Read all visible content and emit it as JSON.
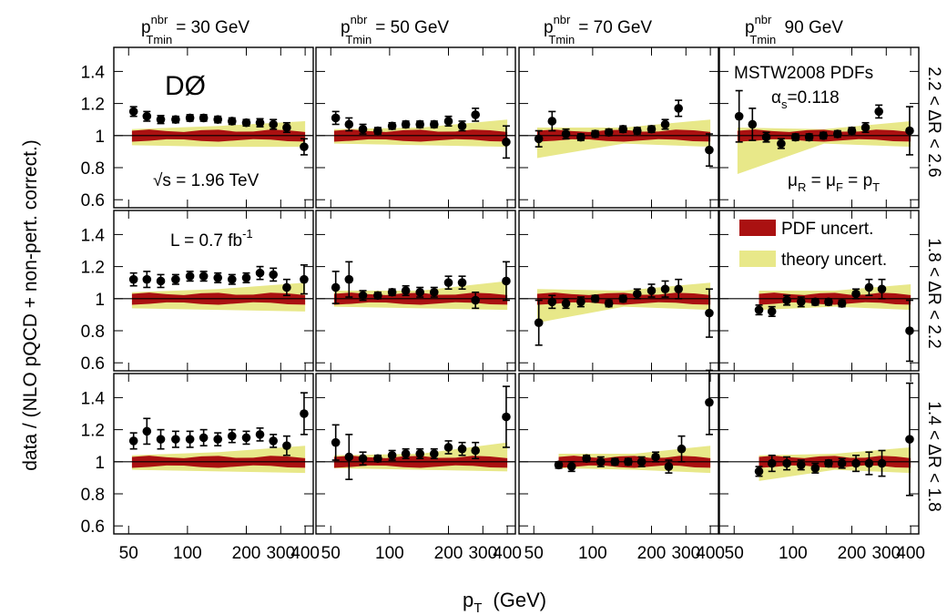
{
  "chart_data": {
    "type": "scatter",
    "layout": "3x4 grid of panels",
    "xlabel_main": "p",
    "xlabel_sub": "T",
    "xlabel_unit": "(GeV)",
    "ylabel": "data / (NLO pQCD + non-pert. correct.)",
    "x_scale": "log",
    "xlim": [
      42,
      440
    ],
    "ylim": [
      0.55,
      1.55
    ],
    "x_ticks": [
      50,
      100,
      200,
      300,
      400
    ],
    "x_tick_labels": [
      "50",
      "100",
      "200",
      "300",
      "400"
    ],
    "y_ticks": [
      0.6,
      0.8,
      1,
      1.2,
      1.4
    ],
    "y_tick_labels": [
      "0.6",
      "0.8",
      "1",
      "1.2",
      "1.4"
    ],
    "column_titles": [
      {
        "main": "p",
        "sup": "nbr",
        "sub": "Tmin",
        "rest": "= 30 GeV"
      },
      {
        "main": "p",
        "sup": "nbr",
        "sub": "Tmin",
        "rest": "= 50 GeV"
      },
      {
        "main": "p",
        "sup": "nbr",
        "sub": "Tmin",
        "rest": "= 70 GeV"
      },
      {
        "main": "p",
        "sup": "nbr",
        "sub": "Tmin",
        "rest": " 90 GeV"
      }
    ],
    "row_labels": [
      "2.2 < ΔR < 2.6",
      "1.8 < ΔR < 2.2",
      "1.4 < ΔR < 1.8"
    ],
    "annotations": {
      "experiment": "DØ",
      "sqrt_s": "√s = 1.96 TeV",
      "lumi_main": "L = 0.7 fb",
      "lumi_sup": "-1",
      "pdf_set": "MSTW2008 PDFs",
      "alpha_s_main": "α",
      "alpha_s_sub": "s",
      "alpha_s_val": "=0.118",
      "scale_mu": "μ",
      "scale_R": "R",
      "scale_F": "F",
      "scale_eq": " = ",
      "scale_pT": "p",
      "scale_T": "T"
    },
    "legend": [
      {
        "label": "PDF uncert.",
        "color": "#aa1111"
      },
      {
        "label": "theory uncert.",
        "color": "#e8e889"
      }
    ],
    "colors": {
      "pdf": "#aa1111",
      "theory": "#e8e889",
      "points": "#000000"
    },
    "panels": [
      {
        "row": 0,
        "col": 0,
        "band_xmin": 52,
        "theory_lo": [
          0.94,
          0.93,
          0.93
        ],
        "theory_hi": [
          1.04,
          1.06,
          1.09
        ],
        "points": [
          [
            53,
            1.15,
            0.03
          ],
          [
            62,
            1.12,
            0.03
          ],
          [
            73,
            1.1,
            0.025
          ],
          [
            87,
            1.1,
            0.02
          ],
          [
            103,
            1.11,
            0.02
          ],
          [
            121,
            1.11,
            0.02
          ],
          [
            143,
            1.1,
            0.02
          ],
          [
            169,
            1.09,
            0.02
          ],
          [
            200,
            1.08,
            0.02
          ],
          [
            235,
            1.08,
            0.025
          ],
          [
            275,
            1.07,
            0.03
          ],
          [
            322,
            1.05,
            0.03
          ],
          [
            395,
            0.93,
            0.05
          ]
        ]
      },
      {
        "row": 0,
        "col": 1,
        "band_xmin": 52,
        "theory_lo": [
          0.95,
          0.94,
          0.93
        ],
        "theory_hi": [
          1.04,
          1.05,
          1.1
        ],
        "points": [
          [
            53,
            1.11,
            0.04
          ],
          [
            62,
            1.07,
            0.04
          ],
          [
            73,
            1.04,
            0.03
          ],
          [
            87,
            1.03,
            0.02
          ],
          [
            103,
            1.06,
            0.02
          ],
          [
            121,
            1.07,
            0.02
          ],
          [
            143,
            1.07,
            0.02
          ],
          [
            169,
            1.07,
            0.02
          ],
          [
            200,
            1.09,
            0.03
          ],
          [
            235,
            1.06,
            0.03
          ],
          [
            275,
            1.13,
            0.04
          ],
          [
            395,
            0.96,
            0.1
          ]
        ]
      },
      {
        "row": 0,
        "col": 2,
        "band_xmin": 52,
        "theory_lo": [
          0.86,
          0.95,
          0.93
        ],
        "theory_hi": [
          1.05,
          1.05,
          1.1
        ],
        "points": [
          [
            53,
            0.98,
            0.05
          ],
          [
            62,
            1.09,
            0.06
          ],
          [
            73,
            1.01,
            0.03
          ],
          [
            87,
            0.99,
            0.02
          ],
          [
            103,
            1.01,
            0.02
          ],
          [
            121,
            1.02,
            0.02
          ],
          [
            143,
            1.04,
            0.02
          ],
          [
            169,
            1.03,
            0.02
          ],
          [
            200,
            1.04,
            0.02
          ],
          [
            235,
            1.07,
            0.03
          ],
          [
            275,
            1.17,
            0.05
          ],
          [
            395,
            0.91,
            0.1
          ]
        ]
      },
      {
        "row": 0,
        "col": 3,
        "band_xmin": 52,
        "theory_lo": [
          0.76,
          0.95,
          0.93
        ],
        "theory_hi": [
          1.05,
          1.04,
          1.09
        ],
        "points": [
          [
            53,
            1.12,
            0.16
          ],
          [
            62,
            1.07,
            0.1
          ],
          [
            73,
            0.99,
            0.03
          ],
          [
            87,
            0.95,
            0.03
          ],
          [
            103,
            0.99,
            0.02
          ],
          [
            121,
            0.99,
            0.02
          ],
          [
            143,
            1.0,
            0.02
          ],
          [
            169,
            1.01,
            0.02
          ],
          [
            200,
            1.03,
            0.02
          ],
          [
            235,
            1.05,
            0.03
          ],
          [
            275,
            1.15,
            0.04
          ],
          [
            395,
            1.03,
            0.15
          ]
        ]
      },
      {
        "row": 1,
        "col": 0,
        "band_xmin": 52,
        "theory_lo": [
          0.94,
          0.93,
          0.92
        ],
        "theory_hi": [
          1.04,
          1.06,
          1.1
        ],
        "points": [
          [
            53,
            1.12,
            0.04
          ],
          [
            62,
            1.12,
            0.05
          ],
          [
            73,
            1.11,
            0.04
          ],
          [
            87,
            1.12,
            0.03
          ],
          [
            103,
            1.14,
            0.03
          ],
          [
            121,
            1.14,
            0.03
          ],
          [
            143,
            1.13,
            0.03
          ],
          [
            169,
            1.12,
            0.03
          ],
          [
            200,
            1.13,
            0.03
          ],
          [
            235,
            1.16,
            0.04
          ],
          [
            275,
            1.15,
            0.04
          ],
          [
            322,
            1.07,
            0.05
          ],
          [
            395,
            1.12,
            0.09
          ]
        ]
      },
      {
        "row": 1,
        "col": 1,
        "band_xmin": 52,
        "theory_lo": [
          0.95,
          0.94,
          0.93
        ],
        "theory_hi": [
          1.05,
          1.05,
          1.11
        ],
        "points": [
          [
            53,
            1.07,
            0.1
          ],
          [
            62,
            1.12,
            0.11
          ],
          [
            73,
            1.02,
            0.03
          ],
          [
            87,
            1.02,
            0.02
          ],
          [
            103,
            1.04,
            0.02
          ],
          [
            121,
            1.05,
            0.03
          ],
          [
            143,
            1.04,
            0.03
          ],
          [
            169,
            1.04,
            0.03
          ],
          [
            200,
            1.1,
            0.04
          ],
          [
            235,
            1.1,
            0.04
          ],
          [
            275,
            0.99,
            0.05
          ],
          [
            395,
            1.11,
            0.12
          ]
        ]
      },
      {
        "row": 1,
        "col": 2,
        "band_xmin": 52,
        "theory_lo": [
          0.85,
          0.95,
          0.93
        ],
        "theory_hi": [
          1.06,
          1.05,
          1.1
        ],
        "points": [
          [
            53,
            0.85,
            0.14
          ],
          [
            62,
            0.98,
            0.04
          ],
          [
            73,
            0.97,
            0.03
          ],
          [
            87,
            0.98,
            0.03
          ],
          [
            103,
            1.0,
            0.02
          ],
          [
            121,
            0.97,
            0.02
          ],
          [
            143,
            1.0,
            0.02
          ],
          [
            169,
            1.03,
            0.03
          ],
          [
            200,
            1.05,
            0.04
          ],
          [
            235,
            1.06,
            0.05
          ],
          [
            275,
            1.06,
            0.06
          ],
          [
            395,
            0.91,
            0.15
          ]
        ]
      },
      {
        "row": 1,
        "col": 3,
        "band_xmin": 67,
        "theory_lo": [
          0.93,
          0.95,
          0.93
        ],
        "theory_hi": [
          1.05,
          1.05,
          1.09
        ],
        "points": [
          [
            67,
            0.93,
            0.03
          ],
          [
            78,
            0.92,
            0.03
          ],
          [
            93,
            0.99,
            0.03
          ],
          [
            110,
            0.98,
            0.03
          ],
          [
            130,
            0.98,
            0.02
          ],
          [
            152,
            0.98,
            0.02
          ],
          [
            178,
            0.97,
            0.02
          ],
          [
            210,
            1.03,
            0.03
          ],
          [
            245,
            1.07,
            0.05
          ],
          [
            285,
            1.06,
            0.06
          ],
          [
            395,
            0.8,
            0.19
          ]
        ]
      },
      {
        "row": 2,
        "col": 0,
        "band_xmin": 52,
        "theory_lo": [
          0.95,
          0.94,
          0.93
        ],
        "theory_hi": [
          1.04,
          1.06,
          1.1
        ],
        "points": [
          [
            53,
            1.13,
            0.05
          ],
          [
            62,
            1.19,
            0.08
          ],
          [
            73,
            1.14,
            0.06
          ],
          [
            87,
            1.14,
            0.05
          ],
          [
            103,
            1.14,
            0.05
          ],
          [
            121,
            1.15,
            0.05
          ],
          [
            143,
            1.14,
            0.04
          ],
          [
            169,
            1.16,
            0.04
          ],
          [
            200,
            1.15,
            0.04
          ],
          [
            235,
            1.17,
            0.04
          ],
          [
            275,
            1.13,
            0.04
          ],
          [
            322,
            1.1,
            0.06
          ],
          [
            395,
            1.3,
            0.13
          ]
        ]
      },
      {
        "row": 2,
        "col": 1,
        "band_xmin": 52,
        "theory_lo": [
          0.96,
          0.95,
          0.94
        ],
        "theory_hi": [
          1.04,
          1.05,
          1.12
        ],
        "points": [
          [
            53,
            1.12,
            0.11
          ],
          [
            62,
            1.03,
            0.14
          ],
          [
            73,
            1.02,
            0.04
          ],
          [
            87,
            1.02,
            0.02
          ],
          [
            103,
            1.04,
            0.03
          ],
          [
            121,
            1.05,
            0.03
          ],
          [
            143,
            1.05,
            0.03
          ],
          [
            169,
            1.05,
            0.03
          ],
          [
            200,
            1.09,
            0.04
          ],
          [
            235,
            1.08,
            0.04
          ],
          [
            275,
            1.07,
            0.05
          ],
          [
            395,
            1.28,
            0.19
          ]
        ]
      },
      {
        "row": 2,
        "col": 2,
        "band_xmin": 67,
        "theory_lo": [
          0.96,
          0.95,
          0.93
        ],
        "theory_hi": [
          1.05,
          1.05,
          1.1
        ],
        "points": [
          [
            67,
            0.98,
            0.02
          ],
          [
            78,
            0.97,
            0.03
          ],
          [
            93,
            1.02,
            0.02
          ],
          [
            110,
            1.0,
            0.03
          ],
          [
            130,
            1.0,
            0.02
          ],
          [
            152,
            1.0,
            0.02
          ],
          [
            178,
            1.0,
            0.03
          ],
          [
            210,
            1.03,
            0.03
          ],
          [
            245,
            0.97,
            0.04
          ],
          [
            285,
            1.08,
            0.08
          ],
          [
            395,
            1.37,
            0.2
          ]
        ]
      },
      {
        "row": 2,
        "col": 3,
        "band_xmin": 67,
        "theory_lo": [
          0.88,
          0.95,
          0.93
        ],
        "theory_hi": [
          1.04,
          1.05,
          1.09
        ],
        "points": [
          [
            67,
            0.94,
            0.03
          ],
          [
            78,
            0.99,
            0.05
          ],
          [
            93,
            0.99,
            0.04
          ],
          [
            110,
            0.98,
            0.03
          ],
          [
            130,
            0.96,
            0.03
          ],
          [
            152,
            0.99,
            0.02
          ],
          [
            178,
            0.99,
            0.03
          ],
          [
            210,
            0.99,
            0.05
          ],
          [
            245,
            0.99,
            0.07
          ],
          [
            285,
            0.99,
            0.08
          ],
          [
            395,
            1.14,
            0.35
          ]
        ]
      }
    ]
  }
}
